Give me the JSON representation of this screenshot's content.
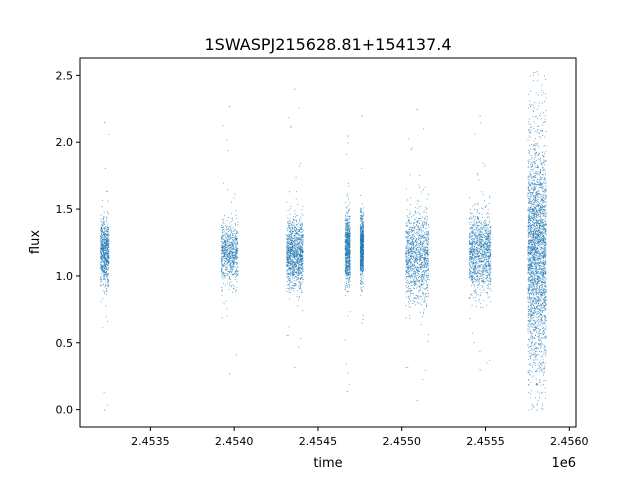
{
  "chart_data": {
    "type": "scatter",
    "title": "1SWASPJ215628.81+154137.4",
    "xlabel": "time",
    "ylabel": "flux",
    "x_offset_label": "1e6",
    "xlim": [
      2.45308,
      2.45604
    ],
    "ylim": [
      -0.13,
      2.63
    ],
    "x_ticks": [
      2.4535,
      2.454,
      2.4545,
      2.455,
      2.4555,
      2.456
    ],
    "x_tick_labels": [
      "2.4535",
      "2.4540",
      "2.4545",
      "2.4550",
      "2.4555",
      "2.4560"
    ],
    "y_ticks": [
      0.0,
      0.5,
      1.0,
      1.5,
      2.0,
      2.5
    ],
    "y_tick_labels": [
      "0.0",
      "0.5",
      "1.0",
      "1.5",
      "2.0",
      "2.5"
    ],
    "marker_color": "#1f77b4",
    "grid": false,
    "legend": "none",
    "clusters": [
      {
        "x_start": 2.4532,
        "x_end": 2.45325,
        "center": 1.18,
        "spread": 0.12,
        "min": 0.0,
        "max": 2.15,
        "density": "low"
      },
      {
        "x_start": 2.45392,
        "x_end": 2.45402,
        "center": 1.17,
        "spread": 0.11,
        "min": 0.27,
        "max": 2.27,
        "density": "low"
      },
      {
        "x_start": 2.45431,
        "x_end": 2.45441,
        "center": 1.17,
        "spread": 0.13,
        "min": 0.32,
        "max": 2.4,
        "density": "medium"
      },
      {
        "x_start": 2.45466,
        "x_end": 2.45469,
        "center": 1.2,
        "spread": 0.13,
        "min": 0.14,
        "max": 2.05,
        "density": "low"
      },
      {
        "x_start": 2.45475,
        "x_end": 2.45477,
        "center": 1.22,
        "spread": 0.12,
        "min": 0.65,
        "max": 2.2,
        "density": "low"
      },
      {
        "x_start": 2.45502,
        "x_end": 2.45516,
        "center": 1.15,
        "spread": 0.17,
        "min": 0.07,
        "max": 2.25,
        "density": "medium"
      },
      {
        "x_start": 2.4554,
        "x_end": 2.45553,
        "center": 1.18,
        "spread": 0.15,
        "min": 0.3,
        "max": 2.2,
        "density": "medium"
      },
      {
        "x_start": 2.45575,
        "x_end": 2.45586,
        "center": 1.15,
        "spread": 0.4,
        "min": 0.0,
        "max": 2.53,
        "density": "high"
      }
    ]
  }
}
